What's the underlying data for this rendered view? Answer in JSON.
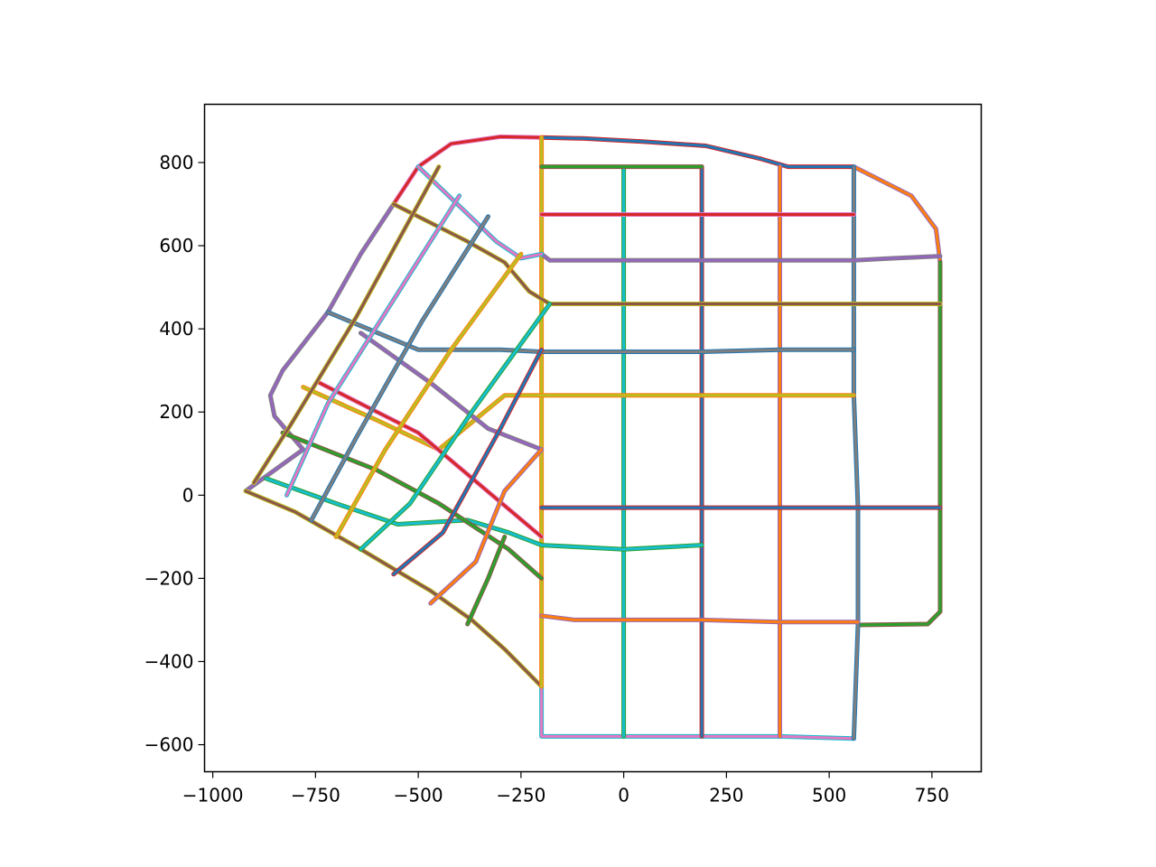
{
  "chart_data": {
    "type": "line",
    "title": "",
    "xlabel": "",
    "ylabel": "",
    "xlim": [
      -1020,
      870
    ],
    "ylim": [
      -665,
      940
    ],
    "xticks": [
      -1000,
      -750,
      -500,
      -250,
      0,
      250,
      500,
      750
    ],
    "xtick_labels": [
      "−1000",
      "−750",
      "−500",
      "−250",
      "0",
      "250",
      "500",
      "750"
    ],
    "yticks": [
      -600,
      -400,
      -200,
      0,
      200,
      400,
      600,
      800
    ],
    "ytick_labels": [
      "−600",
      "−400",
      "−200",
      "0",
      "200",
      "400",
      "600",
      "800"
    ],
    "grid": false,
    "legend": "none",
    "color_cycle": [
      "#1f77b4",
      "#ff7f0e",
      "#2ca02c",
      "#d62728",
      "#9467bd",
      "#8c564b",
      "#e377c2",
      "#7f7f7f",
      "#bcbd22",
      "#17becf"
    ],
    "series": [
      {
        "values": [
          [
            -200,
            860
          ],
          [
            -100,
            858
          ],
          [
            50,
            850
          ],
          [
            200,
            840
          ],
          [
            330,
            810
          ],
          [
            400,
            790
          ],
          [
            500,
            790
          ],
          [
            560,
            790
          ]
        ]
      },
      {
        "values": [
          [
            560,
            790
          ],
          [
            700,
            720
          ],
          [
            760,
            640
          ],
          [
            770,
            560
          ]
        ]
      },
      {
        "values": [
          [
            770,
            560
          ],
          [
            770,
            460
          ],
          [
            770,
            200
          ],
          [
            770,
            -30
          ],
          [
            770,
            -280
          ],
          [
            740,
            -310
          ],
          [
            570,
            -312
          ]
        ]
      },
      {
        "values": [
          [
            -200,
            860
          ],
          [
            -300,
            862
          ],
          [
            -420,
            845
          ],
          [
            -500,
            790
          ],
          [
            -560,
            700
          ]
        ]
      },
      {
        "values": [
          [
            -560,
            700
          ],
          [
            -640,
            580
          ],
          [
            -720,
            440
          ],
          [
            -830,
            300
          ],
          [
            -860,
            240
          ],
          [
            -850,
            190
          ],
          [
            -780,
            110
          ],
          [
            -920,
            10
          ]
        ]
      },
      {
        "values": [
          [
            -920,
            10
          ],
          [
            -800,
            -40
          ],
          [
            -640,
            -130
          ],
          [
            -470,
            -230
          ],
          [
            -370,
            -300
          ],
          [
            -290,
            -370
          ],
          [
            -220,
            -440
          ],
          [
            -200,
            -460
          ]
        ]
      },
      {
        "values": [
          [
            -200,
            -460
          ],
          [
            -200,
            -580
          ],
          [
            0,
            -580
          ],
          [
            190,
            -580
          ],
          [
            380,
            -580
          ],
          [
            560,
            -585
          ]
        ]
      },
      {
        "values": [
          [
            560,
            -585
          ],
          [
            570,
            -312
          ],
          [
            570,
            -30
          ],
          [
            560,
            240
          ],
          [
            560,
            460
          ],
          [
            560,
            570
          ],
          [
            560,
            790
          ]
        ]
      },
      {
        "values": [
          [
            -200,
            860
          ],
          [
            -200,
            580
          ],
          [
            -200,
            460
          ],
          [
            -200,
            350
          ],
          [
            -200,
            240
          ],
          [
            -200,
            110
          ],
          [
            -200,
            -30
          ],
          [
            -200,
            -200
          ],
          [
            -200,
            -460
          ]
        ]
      },
      {
        "values": [
          [
            0,
            790
          ],
          [
            0,
            560
          ],
          [
            0,
            350
          ],
          [
            0,
            240
          ],
          [
            0,
            -30
          ],
          [
            0,
            -300
          ],
          [
            0,
            -580
          ]
        ]
      },
      {
        "values": [
          [
            190,
            790
          ],
          [
            190,
            560
          ],
          [
            190,
            350
          ],
          [
            190,
            240
          ],
          [
            190,
            -30
          ],
          [
            190,
            -300
          ],
          [
            190,
            -580
          ]
        ]
      },
      {
        "values": [
          [
            380,
            790
          ],
          [
            380,
            560
          ],
          [
            380,
            350
          ],
          [
            380,
            240
          ],
          [
            380,
            -30
          ],
          [
            380,
            -300
          ],
          [
            380,
            -580
          ]
        ]
      },
      {
        "values": [
          [
            -200,
            790
          ],
          [
            0,
            790
          ],
          [
            190,
            790
          ]
        ]
      },
      {
        "values": [
          [
            -200,
            675
          ],
          [
            0,
            675
          ],
          [
            190,
            675
          ],
          [
            380,
            675
          ],
          [
            560,
            675
          ]
        ]
      },
      {
        "values": [
          [
            -200,
            580
          ],
          [
            -180,
            565
          ],
          [
            0,
            565
          ],
          [
            190,
            565
          ],
          [
            380,
            565
          ],
          [
            560,
            565
          ],
          [
            660,
            570
          ],
          [
            770,
            575
          ]
        ]
      },
      {
        "values": [
          [
            -560,
            700
          ],
          [
            -380,
            610
          ],
          [
            -290,
            560
          ],
          [
            -230,
            490
          ],
          [
            -180,
            460
          ],
          [
            0,
            460
          ],
          [
            190,
            460
          ],
          [
            380,
            460
          ],
          [
            560,
            460
          ],
          [
            770,
            460
          ]
        ]
      },
      {
        "values": [
          [
            -500,
            790
          ],
          [
            -310,
            610
          ],
          [
            -250,
            570
          ],
          [
            -200,
            580
          ]
        ]
      },
      {
        "values": [
          [
            -720,
            440
          ],
          [
            -500,
            350
          ],
          [
            -300,
            350
          ],
          [
            -200,
            345
          ],
          [
            0,
            345
          ],
          [
            190,
            345
          ],
          [
            380,
            350
          ],
          [
            560,
            350
          ]
        ]
      },
      {
        "values": [
          [
            -780,
            260
          ],
          [
            -600,
            180
          ],
          [
            -450,
            110
          ],
          [
            -290,
            240
          ],
          [
            -200,
            240
          ],
          [
            0,
            240
          ],
          [
            190,
            240
          ],
          [
            380,
            240
          ],
          [
            560,
            240
          ]
        ]
      },
      {
        "values": [
          [
            -870,
            40
          ],
          [
            -700,
            -20
          ],
          [
            -550,
            -70
          ],
          [
            -380,
            -60
          ],
          [
            -280,
            -90
          ],
          [
            -200,
            -120
          ],
          [
            0,
            -130
          ],
          [
            190,
            -120
          ]
        ]
      },
      {
        "values": [
          [
            -200,
            -30
          ],
          [
            0,
            -30
          ],
          [
            190,
            -30
          ],
          [
            380,
            -30
          ],
          [
            570,
            -30
          ],
          [
            770,
            -30
          ]
        ]
      },
      {
        "values": [
          [
            -200,
            -290
          ],
          [
            -120,
            -300
          ],
          [
            0,
            -300
          ],
          [
            190,
            -300
          ],
          [
            380,
            -305
          ],
          [
            570,
            -305
          ]
        ]
      },
      {
        "values": [
          [
            -830,
            150
          ],
          [
            -600,
            60
          ],
          [
            -450,
            -20
          ],
          [
            -280,
            -130
          ],
          [
            -200,
            -200
          ]
        ]
      },
      {
        "values": [
          [
            -740,
            270
          ],
          [
            -500,
            150
          ],
          [
            -320,
            0
          ],
          [
            -200,
            -100
          ]
        ]
      },
      {
        "values": [
          [
            -640,
            390
          ],
          [
            -470,
            270
          ],
          [
            -330,
            160
          ],
          [
            -200,
            110
          ]
        ]
      },
      {
        "values": [
          [
            -450,
            790
          ],
          [
            -650,
            430
          ],
          [
            -810,
            170
          ],
          [
            -900,
            30
          ]
        ]
      },
      {
        "values": [
          [
            -400,
            720
          ],
          [
            -560,
            470
          ],
          [
            -720,
            220
          ],
          [
            -820,
            0
          ]
        ]
      },
      {
        "values": [
          [
            -330,
            670
          ],
          [
            -490,
            420
          ],
          [
            -650,
            140
          ],
          [
            -760,
            -60
          ]
        ]
      },
      {
        "values": [
          [
            -250,
            580
          ],
          [
            -420,
            350
          ],
          [
            -580,
            110
          ],
          [
            -700,
            -100
          ]
        ]
      },
      {
        "values": [
          [
            -180,
            460
          ],
          [
            -370,
            200
          ],
          [
            -520,
            -20
          ],
          [
            -640,
            -130
          ]
        ]
      },
      {
        "values": [
          [
            -200,
            350
          ],
          [
            -300,
            160
          ],
          [
            -440,
            -90
          ],
          [
            -560,
            -190
          ]
        ]
      },
      {
        "values": [
          [
            -200,
            110
          ],
          [
            -290,
            10
          ],
          [
            -360,
            -160
          ],
          [
            -470,
            -260
          ]
        ]
      },
      {
        "values": [
          [
            -290,
            -100
          ],
          [
            -330,
            -200
          ],
          [
            -380,
            -310
          ]
        ]
      }
    ]
  }
}
